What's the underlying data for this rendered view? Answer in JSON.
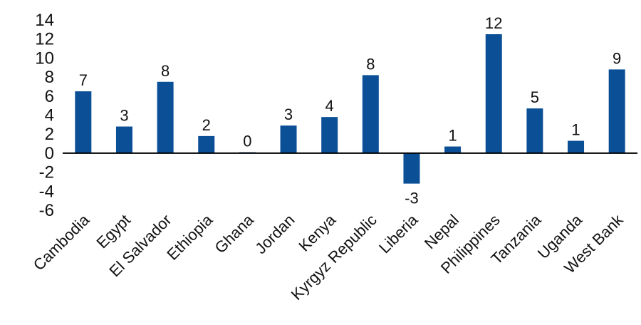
{
  "chart_data": {
    "type": "bar",
    "title": "",
    "xlabel": "",
    "ylabel": "",
    "ylim": [
      -6,
      14
    ],
    "yticks": [
      14,
      12,
      10,
      8,
      6,
      4,
      2,
      0,
      -2,
      -4,
      -6
    ],
    "categories": [
      "Cambodia",
      "Egypt",
      "El Salvador",
      "Ethiopia",
      "Ghana",
      "Jordan",
      "Kenya",
      "Kyrgyz Republic",
      "Liberia",
      "Nepal",
      "Philippines",
      "Tanzania",
      "Uganda",
      "West Bank"
    ],
    "values": [
      6.5,
      2.8,
      7.5,
      1.8,
      0.1,
      2.9,
      3.8,
      8.2,
      -3.2,
      0.7,
      12.5,
      4.7,
      1.3,
      8.8
    ],
    "data_labels": [
      "7",
      "3",
      "8",
      "2",
      "0",
      "3",
      "4",
      "8",
      "-3",
      "1",
      "12",
      "5",
      "1",
      "9"
    ],
    "grid": false,
    "bar_color": "#0b4f96",
    "axis_color": "#000000"
  }
}
